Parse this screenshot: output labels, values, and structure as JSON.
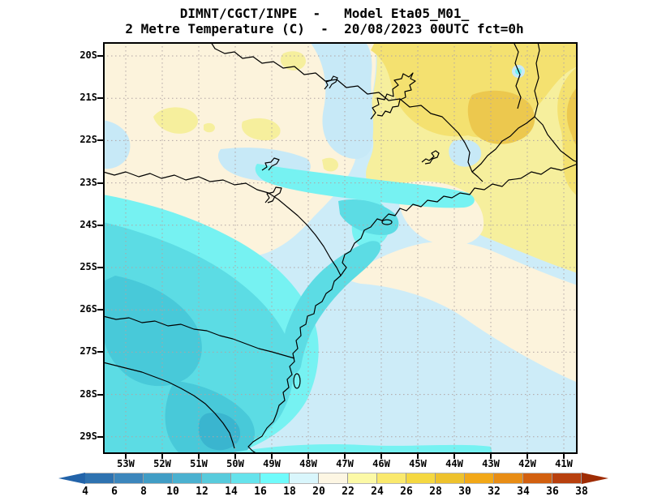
{
  "header": {
    "title_line1": "DIMNT/CGCT/INPE  -   Model Eta05_M01_",
    "title_line2": "2 Metre Temperature (C)  -  20/08/2023 00UTC fct=0h"
  },
  "map": {
    "lat_labels": [
      "20S",
      "21S",
      "22S",
      "23S",
      "24S",
      "25S",
      "26S",
      "27S",
      "28S",
      "29S"
    ],
    "lon_labels": [
      "53W",
      "52W",
      "51W",
      "50W",
      "49W",
      "48W",
      "47W",
      "46W",
      "45W",
      "44W",
      "43W",
      "42W",
      "41W"
    ]
  },
  "colorbar": {
    "tick_labels": [
      "4",
      "6",
      "8",
      "10",
      "12",
      "14",
      "16",
      "18",
      "20",
      "22",
      "24",
      "26",
      "28",
      "30",
      "32",
      "34",
      "36",
      "38"
    ],
    "segment_colors": [
      "#2e72b0",
      "#3c86bc",
      "#419dc5",
      "#4bb1d0",
      "#58cbdc",
      "#66e3ec",
      "#70fbfb",
      "#d9f6fc",
      "#fdf6e3",
      "#fcf9a6",
      "#fae96d",
      "#f5d841",
      "#eec22d",
      "#f2a818",
      "#e88d15",
      "#d2600f",
      "#b8400e"
    ],
    "left_arrow_color": "#2263a9",
    "right_arrow_color": "#9f2d05"
  },
  "field_colors": {
    "band_10_12": "#3ab5cf",
    "band_12_14": "#48c9d9",
    "band_14_16": "#5cdce4",
    "band_16_18": "#76f2f2",
    "band_18_20": "#cdecf8",
    "band_20_22": "#fcf3dc",
    "band_22_24": "#f6ef9d",
    "band_24_26": "#f4e170",
    "band_26_28": "#ecc84e",
    "pale_blue_patch": "#c7e9f7"
  }
}
